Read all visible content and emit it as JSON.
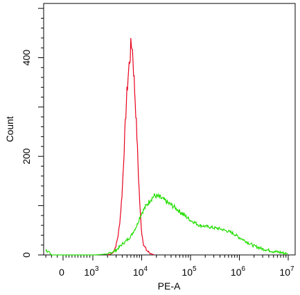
{
  "chart_data": {
    "type": "line",
    "xlabel": "PE-A",
    "ylabel": "Count",
    "x_scale": "biexponential",
    "xlim": [
      -300,
      10000000
    ],
    "ylim": [
      0,
      510
    ],
    "grid": false,
    "x_ticks": [
      {
        "value": 0,
        "label": "0",
        "sup": ""
      },
      {
        "value": 1000,
        "label": "10",
        "sup": "3"
      },
      {
        "value": 10000,
        "label": "10",
        "sup": "4"
      },
      {
        "value": 100000,
        "label": "10",
        "sup": "5"
      },
      {
        "value": 1000000,
        "label": "10",
        "sup": "6"
      },
      {
        "value": 10000000,
        "label": "10",
        "sup": "7"
      }
    ],
    "y_ticks": [
      {
        "value": 0,
        "label": "0"
      },
      {
        "value": 200,
        "label": "200"
      },
      {
        "value": 400,
        "label": "400"
      }
    ],
    "series": [
      {
        "color": "#e8001c",
        "points": [
          [
            2000,
            0
          ],
          [
            2500,
            3
          ],
          [
            2800,
            12
          ],
          [
            3000,
            20
          ],
          [
            3300,
            40
          ],
          [
            3600,
            70
          ],
          [
            4000,
            130
          ],
          [
            4400,
            220
          ],
          [
            4800,
            300
          ],
          [
            5200,
            355
          ],
          [
            5600,
            390
          ],
          [
            6000,
            420
          ],
          [
            6300,
            430
          ],
          [
            6600,
            405
          ],
          [
            7000,
            355
          ],
          [
            7500,
            300
          ],
          [
            8000,
            240
          ],
          [
            8600,
            160
          ],
          [
            9300,
            90
          ],
          [
            10000,
            45
          ],
          [
            11000,
            20
          ],
          [
            12500,
            10
          ],
          [
            14000,
            5
          ],
          [
            16000,
            2
          ],
          [
            18000,
            0
          ]
        ]
      },
      {
        "color": "#22dd00",
        "points": [
          [
            -300,
            10
          ],
          [
            -200,
            0
          ],
          [
            1000,
            0
          ],
          [
            2000,
            2
          ],
          [
            3000,
            10
          ],
          [
            4000,
            22
          ],
          [
            5000,
            30
          ],
          [
            6000,
            38
          ],
          [
            7000,
            50
          ],
          [
            8000,
            60
          ],
          [
            9000,
            75
          ],
          [
            10000,
            85
          ],
          [
            12000,
            98
          ],
          [
            15000,
            112
          ],
          [
            18000,
            120
          ],
          [
            22000,
            118
          ],
          [
            28000,
            112
          ],
          [
            35000,
            105
          ],
          [
            45000,
            98
          ],
          [
            60000,
            88
          ],
          [
            80000,
            78
          ],
          [
            100000,
            70
          ],
          [
            150000,
            60
          ],
          [
            200000,
            58
          ],
          [
            300000,
            55
          ],
          [
            400000,
            53
          ],
          [
            500000,
            50
          ],
          [
            700000,
            45
          ],
          [
            1000000,
            35
          ],
          [
            1500000,
            25
          ],
          [
            2000000,
            18
          ],
          [
            3000000,
            12
          ],
          [
            5000000,
            7
          ],
          [
            8000000,
            4
          ],
          [
            10000000,
            2
          ]
        ]
      }
    ]
  }
}
